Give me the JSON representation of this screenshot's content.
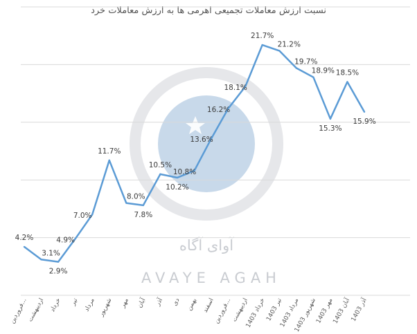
{
  "chart_data": {
    "type": "line",
    "title": "نسبت ارزش معاملات تجمیعی اهرمی ها به ارزش معاملات خرد",
    "categories": [
      "فروردین...",
      "اردیبهشت",
      "خرداد",
      "تیر",
      "مرداد",
      "شهریور",
      "مهر",
      "آبان",
      "آذر",
      "دی",
      "بهمن",
      "اسفند",
      "فروردین...",
      "اردیبهشت",
      "خرداد 1403",
      "تیر 1403",
      "مرداد 1403",
      "شهریور 1403",
      "مهر 1403",
      "آبان 1403",
      "آذر 1403"
    ],
    "series": [
      {
        "color": "#5b9bd5",
        "values": [
          4.2,
          3.1,
          2.9,
          4.9,
          7.0,
          11.7,
          8.0,
          7.8,
          10.5,
          10.2,
          10.8,
          13.6,
          16.2,
          18.1,
          21.7,
          21.2,
          19.7,
          18.9,
          15.3,
          18.5,
          15.9
        ],
        "labels": [
          "4.2%",
          "3.1%",
          "2.9%",
          "4.9%",
          "7.0%",
          "11.7%",
          "8.0%",
          "7.8%",
          "10.5%",
          "10.2%",
          "10.8%",
          "13.6%",
          "16.2%",
          "18.1%",
          "21.7%",
          "21.2%",
          "19.7%",
          "18.9%",
          "15.3%",
          "18.5%",
          "15.9%"
        ]
      }
    ],
    "ylim": [
      0,
      25
    ],
    "grid": true,
    "legend": "none"
  },
  "watermark": {
    "brand_latin": "AVAYE AGAH",
    "brand_persian": "آوای آگاه",
    "colors": {
      "ring": "#e6e7ea",
      "circle": "#c8d9ea",
      "text": "#c9ccd1"
    }
  }
}
